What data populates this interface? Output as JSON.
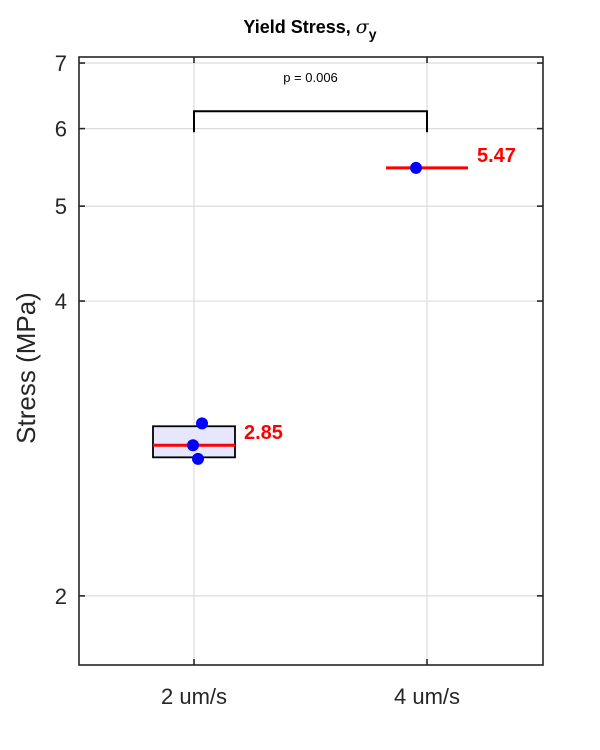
{
  "chart_data": {
    "type": "box",
    "title": "Yield Stress, ",
    "title_symbol": "σ",
    "title_subscript": "y",
    "ylabel": "Stress (MPa)",
    "xlabel": "",
    "ylim": [
      1.7,
      7.1
    ],
    "y_scale": "log",
    "yticks": [
      2,
      4,
      5,
      6,
      7
    ],
    "ytick_labels": [
      "2",
      "4",
      "5",
      "6",
      "7"
    ],
    "grid": true,
    "categories": [
      "2 um/s",
      "4 um/s"
    ],
    "groups": [
      {
        "category": "2 um/s",
        "points": [
          3.0,
          2.85,
          2.76
        ],
        "median": 2.85,
        "q1": 2.77,
        "q3": 2.98,
        "median_label": "2.85"
      },
      {
        "category": "4 um/s",
        "points": [
          5.47
        ],
        "median": 5.47,
        "median_label": "5.47"
      }
    ],
    "significance": {
      "from": "2 um/s",
      "to": "4 um/s",
      "y": 6.25,
      "label": "p = 0.006"
    },
    "colors": {
      "points": "#0000ff",
      "median": "#ff0000",
      "box_fill": "#e6e6ff",
      "box_edge": "#000000",
      "grid": "#dcdcdc"
    }
  }
}
